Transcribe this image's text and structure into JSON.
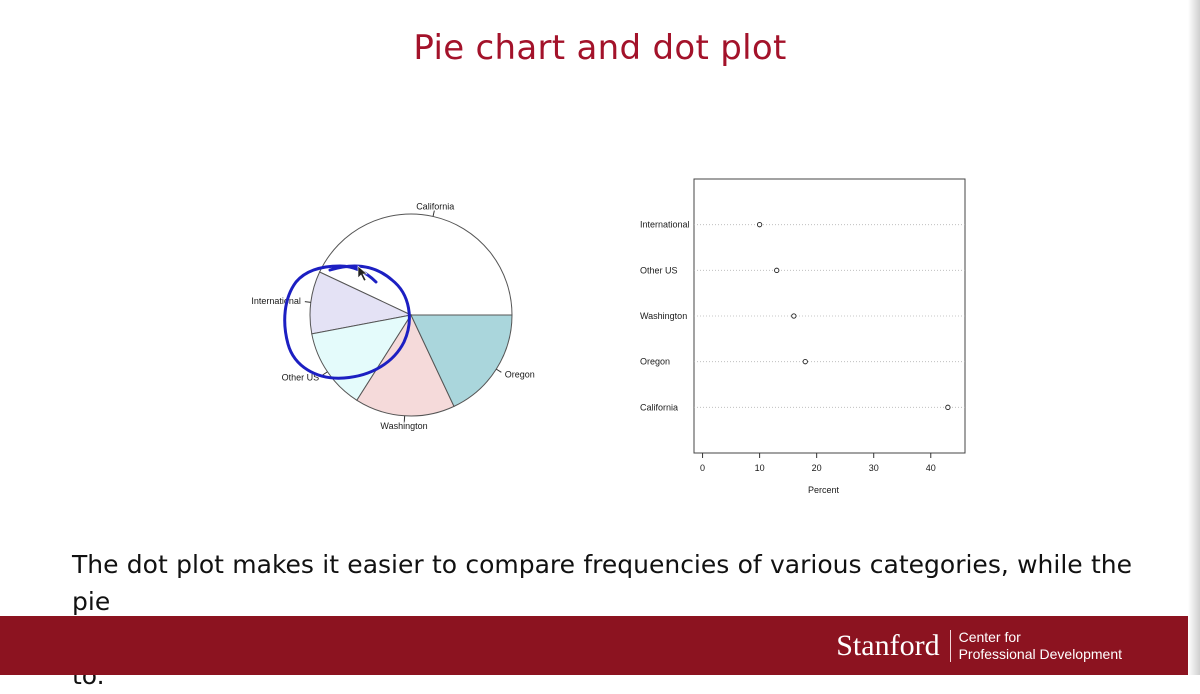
{
  "slide": {
    "title": "Pie chart and dot plot",
    "caption_line1": "The dot plot makes it easier to compare frequencies of various categories, while the pie",
    "caption_line2": "chart allows more easily to eyeball what fraction of the total a category corresponds to."
  },
  "footer": {
    "brand": "Stanford",
    "unit_line1": "Center for",
    "unit_line2": "Professional Development",
    "background_color": "#8c1320"
  },
  "colors": {
    "title": "#a3122a",
    "annotation_ink": "#1c1fc2"
  },
  "chart_data": [
    {
      "type": "pie",
      "categories": [
        "California",
        "International",
        "Other US",
        "Washington",
        "Oregon"
      ],
      "values": [
        43,
        10,
        13,
        16,
        18
      ],
      "colors": [
        "#ffffff",
        "#e4e2f5",
        "#e4fbfb",
        "#f5dada",
        "#aad6dc"
      ]
    },
    {
      "type": "scatter",
      "style": "dot plot",
      "categories": [
        "California",
        "Oregon",
        "Washington",
        "Other US",
        "International"
      ],
      "values": [
        43,
        18,
        16,
        13,
        10
      ],
      "xlabel": "Percent",
      "xticks": [
        0,
        10,
        20,
        30,
        40
      ],
      "xlim": [
        -1.5,
        46
      ]
    }
  ]
}
